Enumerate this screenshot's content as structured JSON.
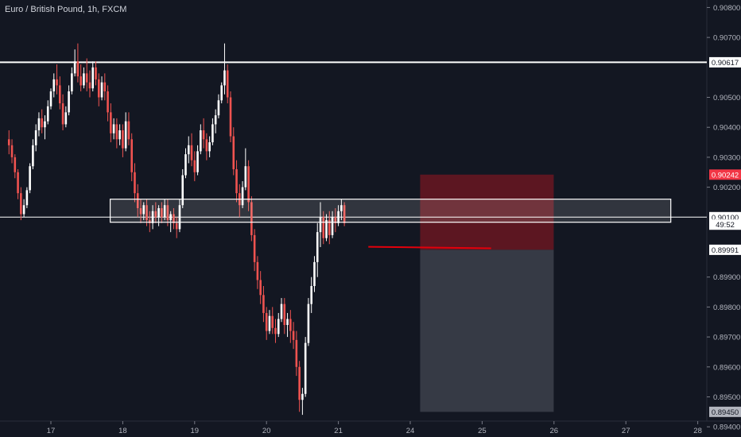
{
  "header": {
    "title": "Euro / British Pound, 1h, FXCM"
  },
  "chart_data": {
    "type": "candlestick",
    "ylim": [
      0.89366,
      0.90825
    ],
    "y_ticks": [
      "0.90800",
      "0.90700",
      "0.90500",
      "0.90400",
      "0.90300",
      "0.90200",
      "0.89900",
      "0.89800",
      "0.89700",
      "0.89600",
      "0.89500",
      "0.89400"
    ],
    "x_ticks": [
      {
        "label": "17",
        "hours": 0
      },
      {
        "label": "18",
        "hours": 24
      },
      {
        "label": "19",
        "hours": 48
      },
      {
        "label": "20",
        "hours": 72
      },
      {
        "label": "21",
        "hours": 96
      },
      {
        "label": "24",
        "hours": 120
      },
      {
        "label": "25",
        "hours": 144
      },
      {
        "label": "26",
        "hours": 168
      },
      {
        "label": "27",
        "hours": 192
      },
      {
        "label": "28",
        "hours": 216
      }
    ],
    "price_labels": [
      {
        "name": "resistance",
        "text": "0.90617",
        "value": 0.90617,
        "bg": "#ffffff",
        "color": "#131722"
      },
      {
        "name": "stop-loss",
        "text": "0.90242",
        "value": 0.90242,
        "bg": "#f23645",
        "color": "#ffffff"
      },
      {
        "name": "zone-line",
        "text": "0.90100",
        "value": 0.901,
        "bg": "#ffffff",
        "color": "#131722"
      },
      {
        "name": "countdown",
        "text": "49:52",
        "value": 0.90075,
        "bg": "#ffffff",
        "color": "#131722"
      },
      {
        "name": "last-price",
        "text": "0.89991",
        "value": 0.89991,
        "bg": "#ffffff",
        "color": "#131722"
      },
      {
        "name": "take-profit",
        "text": "0.89450",
        "value": 0.8945,
        "bg": "#b2b5be",
        "color": "#131722"
      }
    ],
    "lines": [
      {
        "name": "resistance-line",
        "value": 0.90617,
        "color": "#ffffff"
      },
      {
        "name": "zone-line",
        "value": 0.901,
        "color": "#ffffff"
      }
    ],
    "zone": {
      "top": 0.9016,
      "bottom": 0.90083,
      "from_hours": 19.8,
      "to_hours": 207
    },
    "short_position": {
      "entry": 0.89991,
      "stop": 0.90242,
      "target": 0.8945,
      "from_hours": 123.3,
      "to_hours": 167.9,
      "risk_color": "#5c1621",
      "reward_color": "#363a45"
    },
    "trend_segment": {
      "from_hours": 106,
      "to_hours": 147,
      "y1": 0.90001,
      "y2": 0.89996,
      "color": "#e3000b"
    },
    "candles": [
      [
        0.9036,
        0.9039,
        0.9031,
        0.9034
      ],
      [
        0.9034,
        0.9036,
        0.9028,
        0.903
      ],
      [
        0.903,
        0.9031,
        0.9023,
        0.9025
      ],
      [
        0.9025,
        0.9026,
        0.9016,
        0.9018
      ],
      [
        0.9018,
        0.902,
        0.9009,
        0.9011
      ],
      [
        0.9011,
        0.9016,
        0.901,
        0.9014
      ],
      [
        0.9014,
        0.902,
        0.9013,
        0.9019
      ],
      [
        0.9019,
        0.9028,
        0.9018,
        0.9027
      ],
      [
        0.9027,
        0.9036,
        0.9026,
        0.9034
      ],
      [
        0.9034,
        0.9041,
        0.9032,
        0.9039
      ],
      [
        0.9039,
        0.9045,
        0.9037,
        0.9043
      ],
      [
        0.9043,
        0.9046,
        0.9038,
        0.904
      ],
      [
        0.904,
        0.9044,
        0.9036,
        0.9042
      ],
      [
        0.9042,
        0.9049,
        0.9041,
        0.9047
      ],
      [
        0.9047,
        0.9053,
        0.9046,
        0.9052
      ],
      [
        0.9052,
        0.9058,
        0.905,
        0.9056
      ],
      [
        0.9056,
        0.9061,
        0.9051,
        0.9054
      ],
      [
        0.9054,
        0.9057,
        0.9046,
        0.9048
      ],
      [
        0.9048,
        0.9051,
        0.9039,
        0.9041
      ],
      [
        0.9041,
        0.9047,
        0.904,
        0.9045
      ],
      [
        0.9045,
        0.9054,
        0.9044,
        0.9052
      ],
      [
        0.9052,
        0.906,
        0.9051,
        0.9058
      ],
      [
        0.9058,
        0.9066,
        0.9057,
        0.9062
      ],
      [
        0.9062,
        0.9068,
        0.9055,
        0.9057
      ],
      [
        0.9057,
        0.9061,
        0.9052,
        0.9054
      ],
      [
        0.9054,
        0.906,
        0.9053,
        0.9058
      ],
      [
        0.9058,
        0.9063,
        0.9052,
        0.9055
      ],
      [
        0.9055,
        0.9059,
        0.905,
        0.9053
      ],
      [
        0.9053,
        0.9062,
        0.9052,
        0.906
      ],
      [
        0.906,
        0.9062,
        0.9054,
        0.9056
      ],
      [
        0.9056,
        0.9058,
        0.9047,
        0.905
      ],
      [
        0.905,
        0.9057,
        0.9049,
        0.9055
      ],
      [
        0.9055,
        0.9058,
        0.9049,
        0.9052
      ],
      [
        0.9052,
        0.9054,
        0.9042,
        0.9045
      ],
      [
        0.9045,
        0.9048,
        0.9035,
        0.9038
      ],
      [
        0.9038,
        0.9043,
        0.9036,
        0.9041
      ],
      [
        0.9041,
        0.9043,
        0.9033,
        0.9036
      ],
      [
        0.9036,
        0.9041,
        0.9034,
        0.9039
      ],
      [
        0.9039,
        0.9041,
        0.903,
        0.9033
      ],
      [
        0.9033,
        0.9045,
        0.9032,
        0.9042
      ],
      [
        0.9042,
        0.9045,
        0.9034,
        0.9036
      ],
      [
        0.9036,
        0.9038,
        0.9022,
        0.9025
      ],
      [
        0.9025,
        0.9028,
        0.9015,
        0.9018
      ],
      [
        0.9018,
        0.9021,
        0.901,
        0.9013
      ],
      [
        0.9013,
        0.9016,
        0.9008,
        0.9011
      ],
      [
        0.9011,
        0.9015,
        0.9009,
        0.9014
      ],
      [
        0.9014,
        0.9016,
        0.9007,
        0.9009
      ],
      [
        0.9009,
        0.9012,
        0.9005,
        0.9008
      ],
      [
        0.9008,
        0.9014,
        0.9006,
        0.9012
      ],
      [
        0.9012,
        0.9015,
        0.9008,
        0.901
      ],
      [
        0.901,
        0.9014,
        0.9007,
        0.9013
      ],
      [
        0.9013,
        0.9015,
        0.9008,
        0.901
      ],
      [
        0.901,
        0.9016,
        0.9009,
        0.9014
      ],
      [
        0.9014,
        0.9016,
        0.9007,
        0.9009
      ],
      [
        0.9009,
        0.9012,
        0.9005,
        0.9011
      ],
      [
        0.9011,
        0.9013,
        0.9006,
        0.9008
      ],
      [
        0.9008,
        0.901,
        0.9003,
        0.9006
      ],
      [
        0.9006,
        0.9016,
        0.9005,
        0.9014
      ],
      [
        0.9014,
        0.9026,
        0.9013,
        0.9024
      ],
      [
        0.9024,
        0.9033,
        0.9023,
        0.9031
      ],
      [
        0.9031,
        0.9037,
        0.9028,
        0.9034
      ],
      [
        0.9034,
        0.9038,
        0.9027,
        0.9029
      ],
      [
        0.9029,
        0.9032,
        0.9022,
        0.9025
      ],
      [
        0.9025,
        0.9034,
        0.9024,
        0.9032
      ],
      [
        0.9032,
        0.9041,
        0.9031,
        0.9039
      ],
      [
        0.9039,
        0.9043,
        0.9033,
        0.9036
      ],
      [
        0.9036,
        0.9038,
        0.9029,
        0.9032
      ],
      [
        0.9032,
        0.9037,
        0.903,
        0.9035
      ],
      [
        0.9035,
        0.9043,
        0.9034,
        0.9041
      ],
      [
        0.9041,
        0.9046,
        0.9038,
        0.9044
      ],
      [
        0.9044,
        0.9051,
        0.9043,
        0.9049
      ],
      [
        0.9049,
        0.9055,
        0.9048,
        0.9054
      ],
      [
        0.9054,
        0.9068,
        0.9051,
        0.9059
      ],
      [
        0.9059,
        0.9061,
        0.9048,
        0.905
      ],
      [
        0.905,
        0.9052,
        0.9035,
        0.9037
      ],
      [
        0.9037,
        0.904,
        0.9024,
        0.9026
      ],
      [
        0.9026,
        0.9029,
        0.9015,
        0.9018
      ],
      [
        0.9018,
        0.9021,
        0.901,
        0.9014
      ],
      [
        0.9014,
        0.9022,
        0.9013,
        0.902
      ],
      [
        0.902,
        0.9033,
        0.9019,
        0.9027
      ],
      [
        0.9027,
        0.9029,
        0.9012,
        0.9015
      ],
      [
        0.9015,
        0.9017,
        0.9002,
        0.9004
      ],
      [
        0.9004,
        0.9006,
        0.8992,
        0.8995
      ],
      [
        0.8995,
        0.8997,
        0.8986,
        0.8989
      ],
      [
        0.8989,
        0.8992,
        0.8981,
        0.8984
      ],
      [
        0.8984,
        0.8987,
        0.8975,
        0.8978
      ],
      [
        0.8978,
        0.898,
        0.8969,
        0.8972
      ],
      [
        0.8972,
        0.8979,
        0.8971,
        0.8977
      ],
      [
        0.8977,
        0.898,
        0.8971,
        0.8973
      ],
      [
        0.8973,
        0.8976,
        0.8968,
        0.8971
      ],
      [
        0.8971,
        0.8978,
        0.897,
        0.8976
      ],
      [
        0.8976,
        0.8983,
        0.8975,
        0.8981
      ],
      [
        0.8981,
        0.8983,
        0.8971,
        0.8974
      ],
      [
        0.8974,
        0.8978,
        0.897,
        0.8976
      ],
      [
        0.8976,
        0.8979,
        0.8968,
        0.8972
      ],
      [
        0.8972,
        0.8975,
        0.8966,
        0.8969
      ],
      [
        0.8969,
        0.8972,
        0.8957,
        0.896
      ],
      [
        0.896,
        0.8962,
        0.8945,
        0.8949
      ],
      [
        0.8949,
        0.8953,
        0.8944,
        0.8951
      ],
      [
        0.8951,
        0.897,
        0.895,
        0.8968
      ],
      [
        0.8968,
        0.8983,
        0.8967,
        0.8981
      ],
      [
        0.8981,
        0.899,
        0.8978,
        0.8987
      ],
      [
        0.8987,
        0.8997,
        0.8985,
        0.8995
      ],
      [
        0.8995,
        0.9008,
        0.899,
        0.9005
      ],
      [
        0.9005,
        0.9015,
        0.9,
        0.901
      ],
      [
        0.901,
        0.9012,
        0.9001,
        0.9003
      ],
      [
        0.9003,
        0.9011,
        0.9002,
        0.9009
      ],
      [
        0.9009,
        0.9012,
        0.9001,
        0.9004
      ],
      [
        0.9004,
        0.9012,
        0.9003,
        0.901
      ],
      [
        0.901,
        0.9013,
        0.9005,
        0.9008
      ],
      [
        0.9008,
        0.9014,
        0.9007,
        0.9012
      ],
      [
        0.9012,
        0.9016,
        0.9009,
        0.9014
      ],
      [
        0.9014,
        0.9015,
        0.9007,
        0.9008
      ]
    ]
  }
}
